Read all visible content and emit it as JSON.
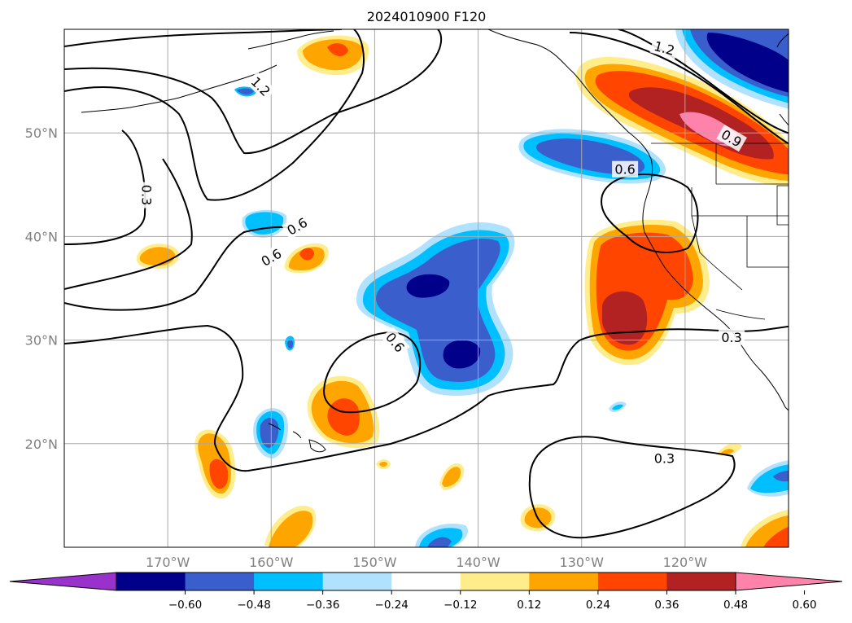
{
  "title": "2024010900 F120",
  "map": {
    "lon_range": [
      -180,
      -110
    ],
    "lat_range": [
      10,
      60
    ],
    "lat_ticks": [
      {
        "value": 20,
        "label": "20°N"
      },
      {
        "value": 30,
        "label": "30°N"
      },
      {
        "value": 40,
        "label": "40°N"
      },
      {
        "value": 50,
        "label": "50°N"
      }
    ],
    "lon_ticks": [
      {
        "value": -170,
        "label": "170°W"
      },
      {
        "value": -160,
        "label": "160°W"
      },
      {
        "value": -150,
        "label": "150°W"
      },
      {
        "value": -140,
        "label": "140°W"
      },
      {
        "value": -130,
        "label": "130°W"
      },
      {
        "value": -120,
        "label": "120°W"
      }
    ],
    "contour_labels": [
      {
        "text": "0.3",
        "lon": -172,
        "lat": 44,
        "rotate": 90
      },
      {
        "text": "1.2",
        "lon": -161,
        "lat": 54.5,
        "rotate": 45
      },
      {
        "text": "0.6",
        "lon": -160,
        "lat": 38,
        "rotate": -30
      },
      {
        "text": "0.6",
        "lon": -157.5,
        "lat": 41,
        "rotate": -30
      },
      {
        "text": "0.6",
        "lon": -148,
        "lat": 29.8,
        "rotate": 50
      },
      {
        "text": "0.3",
        "lon": -122,
        "lat": 18.6,
        "rotate": 0
      },
      {
        "text": "0.3",
        "lon": -115.5,
        "lat": 30.3,
        "rotate": 0
      },
      {
        "text": "0.6",
        "lon": -125.8,
        "lat": 46.5,
        "rotate": 0
      },
      {
        "text": "1.2",
        "lon": -122,
        "lat": 58.2,
        "rotate": 15
      },
      {
        "text": "0.9",
        "lon": -115.5,
        "lat": 49.5,
        "rotate": 30
      }
    ]
  },
  "colorbar": {
    "levels": [
      -0.72,
      -0.6,
      -0.48,
      -0.36,
      -0.24,
      -0.12,
      0.12,
      0.24,
      0.36,
      0.48,
      0.6,
      0.72
    ],
    "tick_labels": [
      "−0.60",
      "−0.48",
      "−0.36",
      "−0.24",
      "−0.12",
      "0.12",
      "0.24",
      "0.36",
      "0.48",
      "0.60"
    ],
    "colors": [
      "#9932cc",
      "#00008b",
      "#3a5fcd",
      "#00bfff",
      "#b0e2ff",
      "#ffffff",
      "#ffec8b",
      "#ffa500",
      "#ff4500",
      "#b22222",
      "#ff82ab"
    ],
    "extend": "both"
  },
  "colors": {
    "pink": "#ff82ab",
    "dark_red": "#b22222",
    "red_orange": "#ff4500",
    "orange": "#ffa500",
    "light_yellow": "#ffec8b",
    "light_blue": "#b0e2ff",
    "sky_blue": "#00bfff",
    "royal_blue": "#3a5fcd",
    "navy": "#00008b",
    "purple": "#9932cc"
  }
}
